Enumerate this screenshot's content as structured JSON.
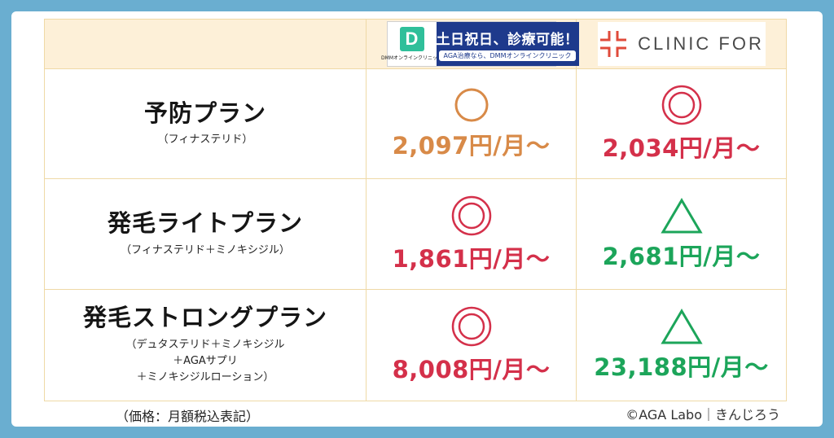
{
  "header": {
    "dmm_brand_small": "DMMオンラインクリニック",
    "dmm_banner_main": "土日祝日、診療可能！",
    "dmm_banner_sub": "AGA治療なら、DMMオンラインクリニック",
    "clinic_for_name": "CLINIC FOR"
  },
  "rows": [
    {
      "plan": "予防プラン",
      "sub": [
        "（フィナステリド）"
      ],
      "dmm": {
        "mark": "circle",
        "price": "2,097円/月〜",
        "color": "#d88a48"
      },
      "cf": {
        "mark": "double-circle",
        "price": "2,034円/月〜",
        "color": "#d4304a"
      }
    },
    {
      "plan": "発毛ライトプラン",
      "sub": [
        "（フィナステリド＋ミノキシジル）"
      ],
      "dmm": {
        "mark": "double-circle",
        "price": "1,861円/月〜",
        "color": "#d4304a"
      },
      "cf": {
        "mark": "triangle",
        "price": "2,681円/月〜",
        "color": "#1ca55a"
      }
    },
    {
      "plan": "発毛ストロングプラン",
      "sub": [
        "（デュタステリド＋ミノキシジル",
        "＋AGAサプリ",
        "＋ミノキシジルローション）"
      ],
      "dmm": {
        "mark": "double-circle",
        "price": "8,008円/月〜",
        "color": "#d4304a"
      },
      "cf": {
        "mark": "triangle",
        "price": "23,188円/月〜",
        "color": "#1ca55a"
      }
    }
  ],
  "footer": {
    "note": "（価格：月額税込表記）",
    "credit": "©AGA Labo｜きんじろう"
  },
  "colors": {
    "background": "#6aaed0",
    "header_bg": "#fdf0d8",
    "border": "#efd9a6",
    "orange": "#d88a48",
    "red": "#d4304a",
    "green": "#1ca55a",
    "dmm_blue": "#1e3a8c",
    "dmm_green": "#2fbf9a",
    "clinic_for_red": "#e04a3a"
  }
}
